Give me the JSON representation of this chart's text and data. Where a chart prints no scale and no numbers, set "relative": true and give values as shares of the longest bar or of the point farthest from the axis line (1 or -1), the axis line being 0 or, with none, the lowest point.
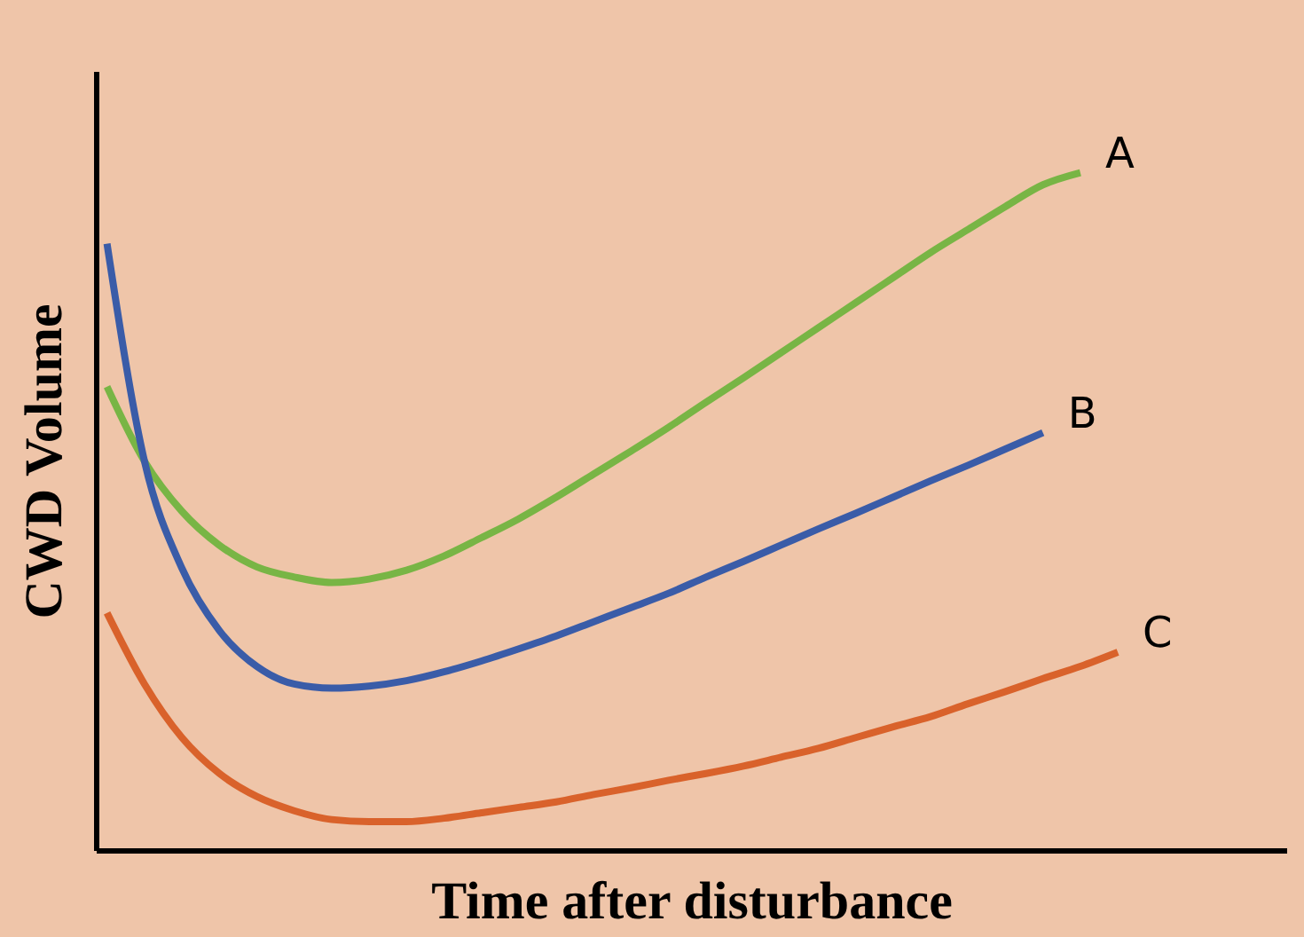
{
  "chart_data": {
    "type": "line",
    "relative": true,
    "xlabel": "Time after disturbance",
    "ylabel": "CWD Volume",
    "categories": [
      null,
      null,
      null,
      null,
      null,
      null,
      null,
      null,
      null,
      null,
      null,
      null,
      null,
      null,
      null,
      null,
      null,
      null,
      null,
      null,
      null,
      null,
      null,
      null,
      null,
      null,
      null,
      null
    ],
    "series": [
      {
        "name": "A",
        "color": "#78b545",
        "values": [
          0.684,
          0.574,
          0.5,
          0.45,
          0.418,
          0.403,
          0.395,
          0.4,
          0.413,
          0.434,
          0.461,
          0.489,
          0.521,
          0.555,
          0.589,
          0.624,
          0.661,
          0.697,
          0.734,
          0.771,
          0.808,
          0.845,
          0.882,
          0.916,
          0.95,
          0.982,
          1,
          null
        ]
      },
      {
        "name": "B",
        "color": "#3a5ca8",
        "values": [
          0.895,
          0.574,
          0.416,
          0.324,
          0.271,
          0.245,
          0.239,
          0.242,
          0.25,
          0.263,
          0.279,
          0.297,
          0.316,
          0.337,
          0.358,
          0.379,
          0.403,
          0.426,
          0.45,
          0.474,
          0.497,
          0.521,
          0.545,
          0.568,
          0.592,
          0.616,
          null,
          null
        ]
      },
      {
        "name": "C",
        "color": "#d9622b",
        "values": [
          0.35,
          0.245,
          0.166,
          0.113,
          0.079,
          0.058,
          0.045,
          0.042,
          0.042,
          0.047,
          0.055,
          0.063,
          0.071,
          0.082,
          0.092,
          0.103,
          0.113,
          0.124,
          0.137,
          0.15,
          0.166,
          0.182,
          0.197,
          0.216,
          0.234,
          0.253,
          0.271,
          0.292
        ]
      }
    ],
    "legend": false,
    "grid": false,
    "marker": "none",
    "line_style": "solid"
  }
}
